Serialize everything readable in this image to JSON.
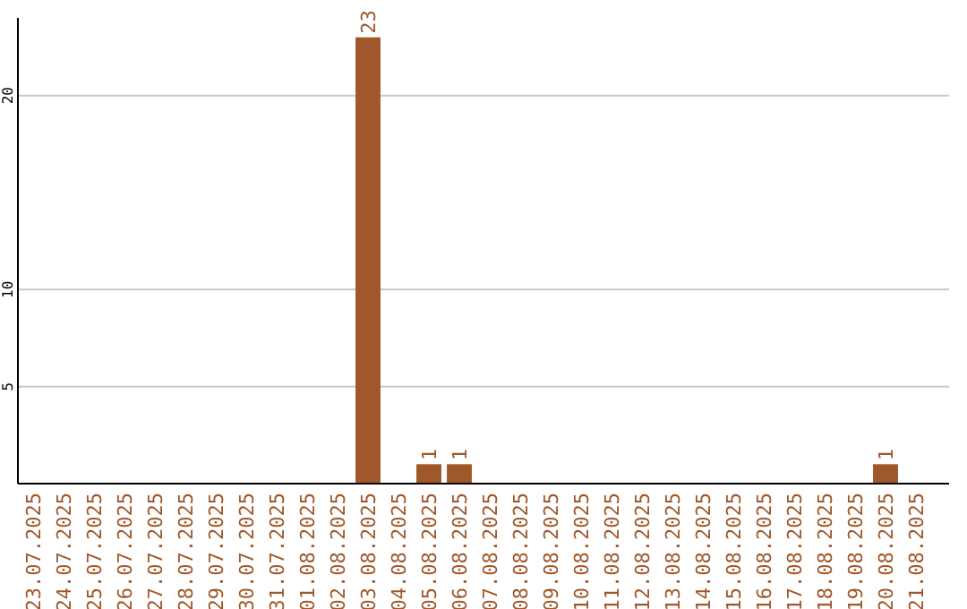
{
  "chart_data": {
    "type": "bar",
    "categories": [
      "23.07.2025",
      "24.07.2025",
      "25.07.2025",
      "26.07.2025",
      "27.07.2025",
      "28.07.2025",
      "29.07.2025",
      "30.07.2025",
      "31.07.2025",
      "01.08.2025",
      "02.08.2025",
      "03.08.2025",
      "04.08.2025",
      "05.08.2025",
      "06.08.2025",
      "07.08.2025",
      "08.08.2025",
      "09.08.2025",
      "10.08.2025",
      "11.08.2025",
      "12.08.2025",
      "13.08.2025",
      "14.08.2025",
      "15.08.2025",
      "16.08.2025",
      "17.08.2025",
      "18.08.2025",
      "19.08.2025",
      "20.08.2025",
      "21.08.2025"
    ],
    "values": [
      0,
      0,
      0,
      0,
      0,
      0,
      0,
      0,
      0,
      0,
      0,
      23,
      0,
      1,
      1,
      0,
      0,
      0,
      0,
      0,
      0,
      0,
      0,
      0,
      0,
      0,
      0,
      0,
      1,
      0
    ],
    "value_labels": [
      null,
      null,
      null,
      null,
      null,
      null,
      null,
      null,
      null,
      null,
      null,
      "23",
      null,
      "1",
      "1",
      null,
      null,
      null,
      null,
      null,
      null,
      null,
      null,
      null,
      null,
      null,
      null,
      null,
      "1",
      null
    ],
    "color": "#a0582a",
    "ylim": [
      0,
      24
    ],
    "yticks": [
      5,
      10,
      20
    ],
    "grid": "y"
  }
}
